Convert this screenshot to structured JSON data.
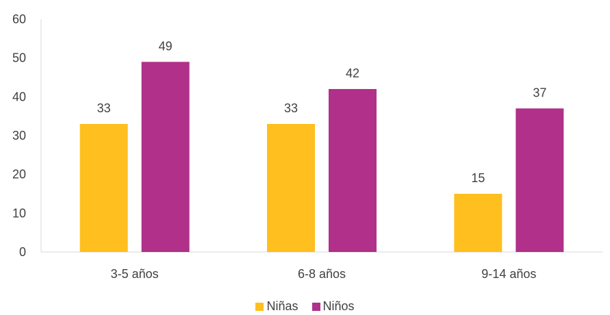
{
  "chart_data": {
    "type": "bar",
    "categories": [
      "3-5 años",
      "6-8 años",
      "9-14 años"
    ],
    "series": [
      {
        "name": "Niñas",
        "values": [
          33,
          33,
          15
        ],
        "color": "#FFBF1F"
      },
      {
        "name": "Niños",
        "values": [
          49,
          42,
          37
        ],
        "color": "#B0308A"
      }
    ],
    "ylim": [
      0,
      60
    ],
    "yticks": [
      "0",
      "10",
      "20",
      "30",
      "40",
      "50",
      "60"
    ],
    "ytick_values": [
      0,
      10,
      20,
      30,
      40,
      50,
      60
    ],
    "data_labels": true,
    "grid": false,
    "legend_position": "bottom"
  }
}
